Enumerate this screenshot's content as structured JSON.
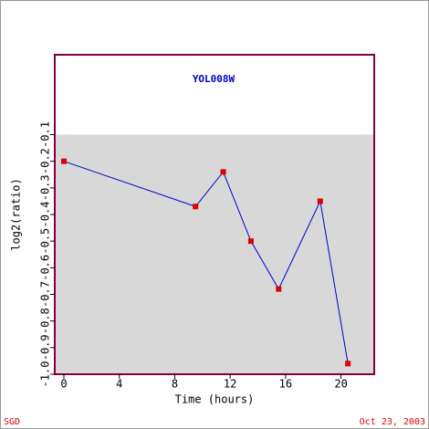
{
  "chart_data": {
    "type": "line",
    "title": "YOL008W",
    "x_label": "Time (hours)",
    "y_label": "log2(ratio)",
    "footer_left": "SGD",
    "footer_right": "Oct 23, 2003",
    "series": [
      {
        "color": "#0000cc",
        "marker_color": "#dd0000",
        "x": [
          0,
          9.5,
          11.5,
          13.5,
          15.5,
          18.5,
          20.5
        ],
        "values": [
          -0.2,
          -0.37,
          -0.24,
          -0.5,
          -0.68,
          -0.35,
          -0.96
        ]
      }
    ],
    "xlim": [
      -0.66,
      22.4
    ],
    "xticks": [
      0,
      4,
      8,
      12,
      16,
      20
    ],
    "ylim": [
      -1.0,
      0.2
    ],
    "yticks": [
      {
        "value": -1.0,
        "label": "-1.0"
      },
      -0.9,
      -0.8,
      -0.7,
      -0.6,
      -0.5,
      -0.4,
      -0.3,
      -0.2,
      -0.1
    ],
    "shaded_ylim": [
      -1.0,
      -0.1
    ],
    "shade_color": "#d8d8d8",
    "frame_color": "#800040"
  }
}
